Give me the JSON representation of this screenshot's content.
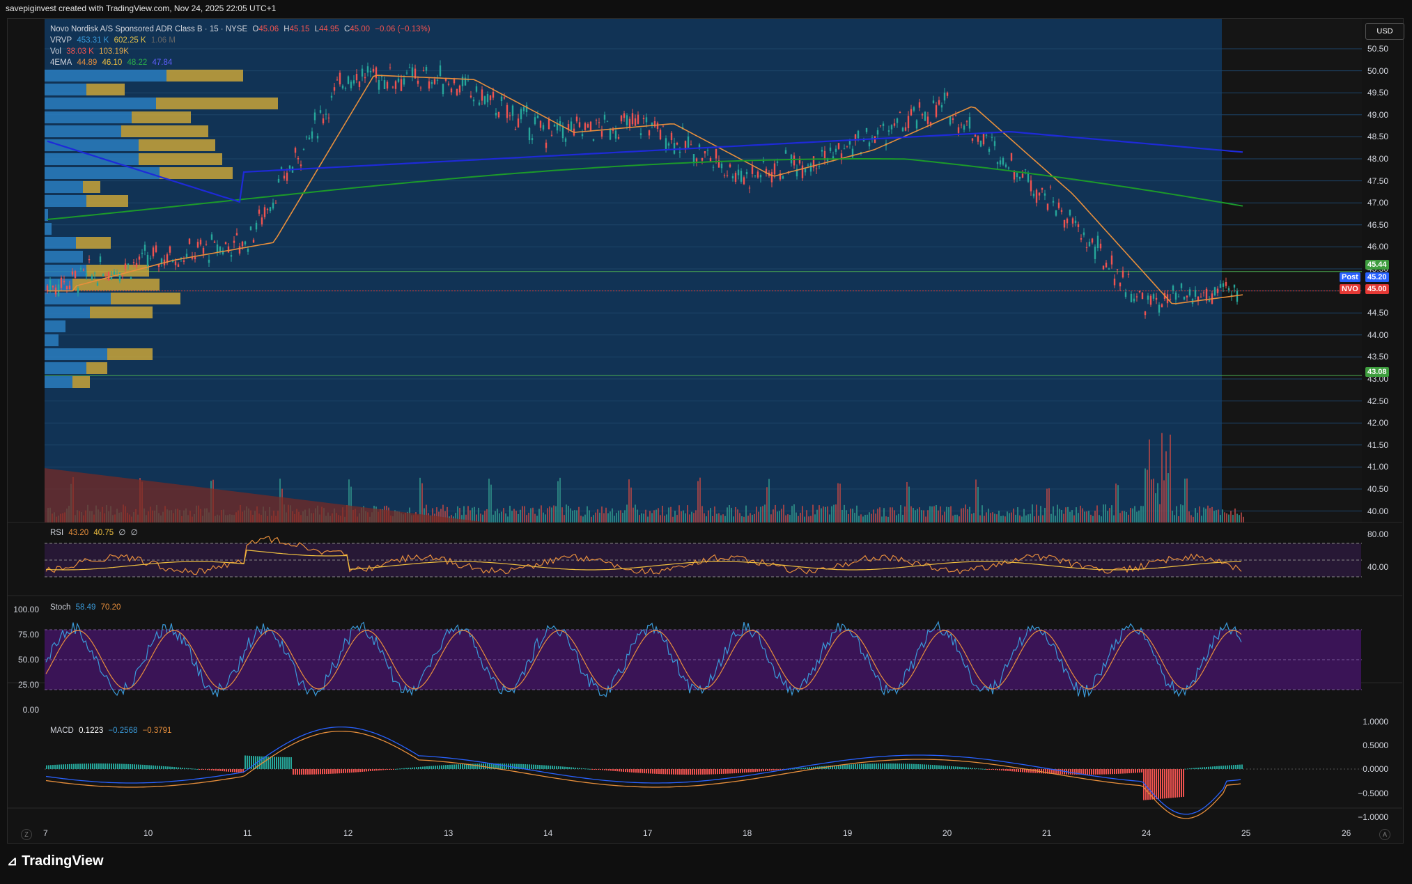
{
  "caption": "savepiginvest created with TradingView.com, Nov 24, 2025 22:05 UTC+1",
  "brand": "TradingView",
  "currency": "USD",
  "header": {
    "symbol": "Novo Nordisk A/S Sponsored ADR Class B · 15 · NYSE",
    "o_label": "O",
    "o": "45.06",
    "h_label": "H",
    "h": "45.15",
    "l_label": "L",
    "l": "44.95",
    "c_label": "C",
    "c": "45.00",
    "change": "−0.06 (−0.13%)"
  },
  "indicators": {
    "vrvp": {
      "label": "VRVP",
      "v1": "453.31 K",
      "v2": "602.25 K",
      "v3": "1.06 M"
    },
    "vol": {
      "label": "Vol",
      "v1": "38.03 K",
      "v2": "103.19K"
    },
    "ema": {
      "label": "4EMA",
      "v1": "44.89",
      "v2": "46.10",
      "v3": "48.22",
      "v4": "47.84"
    },
    "rsi": {
      "label": "RSI",
      "v1": "43.20",
      "v2": "40.75",
      "v3": "∅",
      "v4": "∅"
    },
    "stoch": {
      "label": "Stoch",
      "v1": "58.49",
      "v2": "70.20"
    },
    "macd": {
      "label": "MACD",
      "v1": "0.1223",
      "v2": "−0.2568",
      "v3": "−0.3791"
    }
  },
  "price_axis": [
    "50.50",
    "50.00",
    "49.50",
    "49.00",
    "48.50",
    "48.00",
    "47.50",
    "47.00",
    "46.50",
    "46.00",
    "45.50",
    "45.00",
    "44.50",
    "44.00",
    "43.50",
    "43.00",
    "42.50",
    "42.00",
    "41.50",
    "41.00",
    "40.50",
    "40.00"
  ],
  "price_tags": {
    "upper_line": "45.44",
    "post_label": "Post",
    "post": "45.20",
    "nvo_label": "NVO",
    "nvo": "45.00",
    "lower_line": "43.08"
  },
  "rsi_axis": [
    "80.00",
    "40.00"
  ],
  "stoch_axis": [
    "100.00",
    "75.00",
    "50.00",
    "25.00",
    "0.00"
  ],
  "macd_axis": [
    "1.0000",
    "0.5000",
    "0.0000",
    "−0.5000",
    "−1.0000"
  ],
  "x_axis": [
    "7",
    "10",
    "11",
    "12",
    "13",
    "14",
    "17",
    "18",
    "19",
    "20",
    "21",
    "24",
    "25",
    "26"
  ],
  "corner_left": "Z",
  "corner_right": "A",
  "colors": {
    "bg": "#131313",
    "chart_bg": "#113355",
    "up": "#26a69a",
    "down": "#ef5350",
    "ema1": "#e88f3c",
    "ema2": "#e88f3c",
    "ema3": "#1c9a2a",
    "ema4": "#1e2ad8",
    "vp_up": "#2a7ec0",
    "vp_down": "#c9a43a",
    "rsi_band": "#2a1a3a",
    "stoch_band": "#3a1456"
  },
  "chart_data": {
    "type": "line",
    "x": [
      "7",
      "10",
      "11",
      "12",
      "13",
      "14",
      "17",
      "18",
      "19",
      "20",
      "21",
      "24",
      "25"
    ],
    "series": [
      {
        "name": "price (close)",
        "values": [
          45.1,
          45.7,
          46.1,
          49.9,
          49.8,
          48.6,
          48.8,
          47.6,
          48.2,
          49.2,
          47.2,
          44.7,
          45.0
        ]
      }
    ],
    "ylim": [
      40,
      50.6
    ]
  }
}
